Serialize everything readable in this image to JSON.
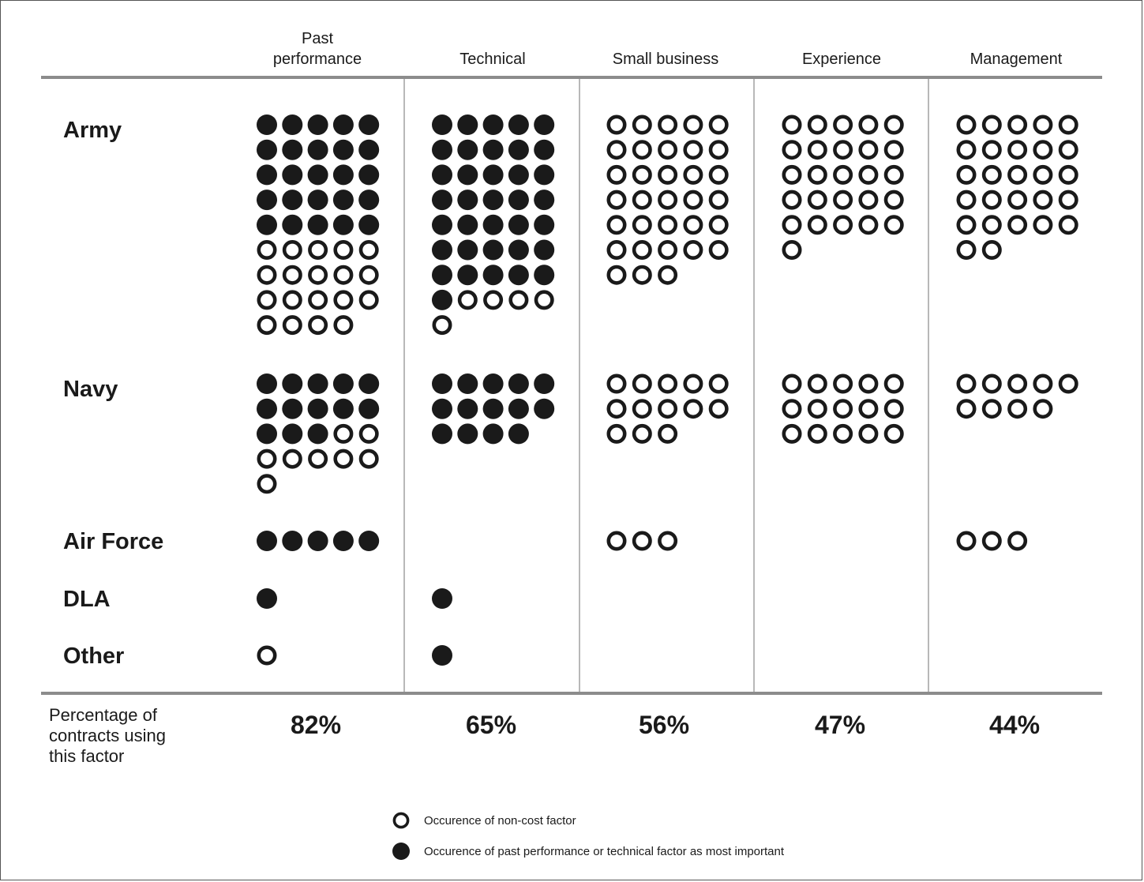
{
  "chart_data": {
    "type": "table",
    "columns": [
      "Past performance",
      "Technical",
      "Small business",
      "Experience",
      "Management"
    ],
    "rows": [
      {
        "name": "Army",
        "cells": [
          {
            "filled": 25,
            "open": 19
          },
          {
            "filled": 36,
            "open": 5
          },
          {
            "filled": 0,
            "open": 33
          },
          {
            "filled": 0,
            "open": 26
          },
          {
            "filled": 0,
            "open": 27
          }
        ]
      },
      {
        "name": "Navy",
        "cells": [
          {
            "filled": 13,
            "open": 8
          },
          {
            "filled": 14,
            "open": 0
          },
          {
            "filled": 0,
            "open": 13
          },
          {
            "filled": 0,
            "open": 15
          },
          {
            "filled": 0,
            "open": 9
          }
        ]
      },
      {
        "name": "Air Force",
        "cells": [
          {
            "filled": 5,
            "open": 0
          },
          {
            "filled": 0,
            "open": 0
          },
          {
            "filled": 0,
            "open": 3
          },
          {
            "filled": 0,
            "open": 0
          },
          {
            "filled": 0,
            "open": 3
          }
        ]
      },
      {
        "name": "DLA",
        "cells": [
          {
            "filled": 1,
            "open": 0
          },
          {
            "filled": 1,
            "open": 0
          },
          {
            "filled": 0,
            "open": 0
          },
          {
            "filled": 0,
            "open": 0
          },
          {
            "filled": 0,
            "open": 0
          }
        ]
      },
      {
        "name": "Other",
        "cells": [
          {
            "filled": 0,
            "open": 1
          },
          {
            "filled": 1,
            "open": 0
          },
          {
            "filled": 0,
            "open": 0
          },
          {
            "filled": 0,
            "open": 0
          },
          {
            "filled": 0,
            "open": 0
          }
        ]
      }
    ],
    "percentage_label": "Percentage of contracts using this factor",
    "percentages": [
      "82%",
      "65%",
      "56%",
      "47%",
      "44%"
    ],
    "legend": [
      {
        "symbol": "open-circle",
        "label": "Occurence of non-cost factor"
      },
      {
        "symbol": "filled-circle",
        "label": "Occurence of past performance or technical factor as most important"
      }
    ],
    "colors": {
      "ink": "#1a1a1a",
      "rule": "#8c8c8c",
      "divider": "#9a9a9a"
    }
  }
}
